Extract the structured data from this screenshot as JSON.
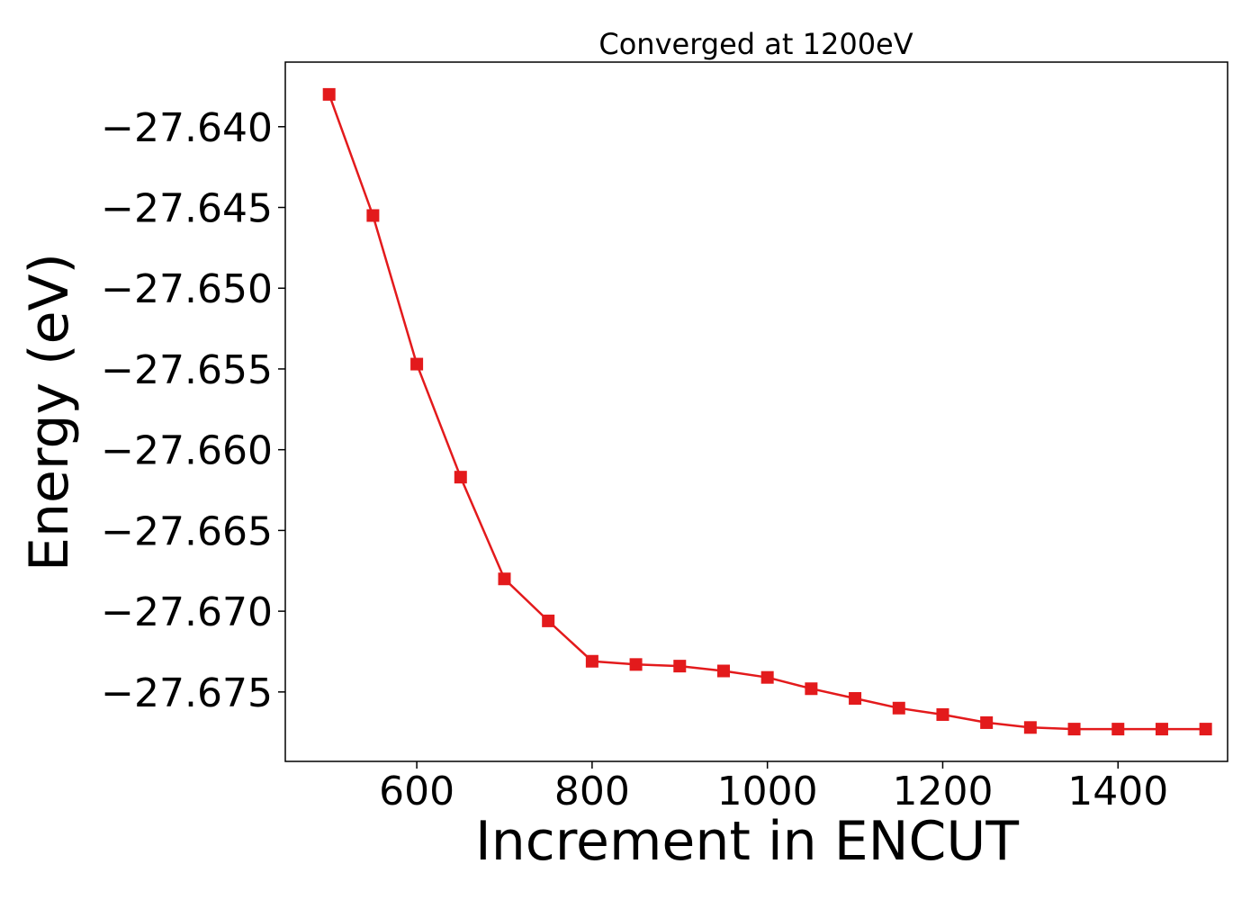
{
  "chart_data": {
    "type": "line",
    "title": "Converged at 1200eV",
    "xlabel": "Increment in ENCUT",
    "ylabel": "Energy (eV)",
    "xlim": [
      450,
      1525
    ],
    "ylim": [
      -27.6793,
      -27.636
    ],
    "xticks": [
      600,
      800,
      1000,
      1200,
      1400
    ],
    "xtick_labels": [
      "600",
      "800",
      "1000",
      "1200",
      "1400"
    ],
    "yticks": [
      -27.64,
      -27.645,
      -27.65,
      -27.655,
      -27.66,
      -27.665,
      -27.67,
      -27.675
    ],
    "ytick_labels": [
      "−27.640",
      "−27.645",
      "−27.650",
      "−27.655",
      "−27.660",
      "−27.665",
      "−27.670",
      "−27.675"
    ],
    "grid": false,
    "series": [
      {
        "color": "#e31a1c",
        "marker": "square",
        "x": [
          500,
          550,
          600,
          650,
          700,
          750,
          800,
          850,
          900,
          950,
          1000,
          1050,
          1100,
          1150,
          1200,
          1250,
          1300,
          1350,
          1400,
          1450,
          1500
        ],
        "y": [
          -27.638,
          -27.6455,
          -27.6547,
          -27.6617,
          -27.668,
          -27.6706,
          -27.6731,
          -27.6733,
          -27.6734,
          -27.6737,
          -27.6741,
          -27.6748,
          -27.6754,
          -27.676,
          -27.6764,
          -27.6769,
          -27.6772,
          -27.6773,
          -27.6773,
          -27.6773,
          -27.6773
        ]
      }
    ]
  }
}
